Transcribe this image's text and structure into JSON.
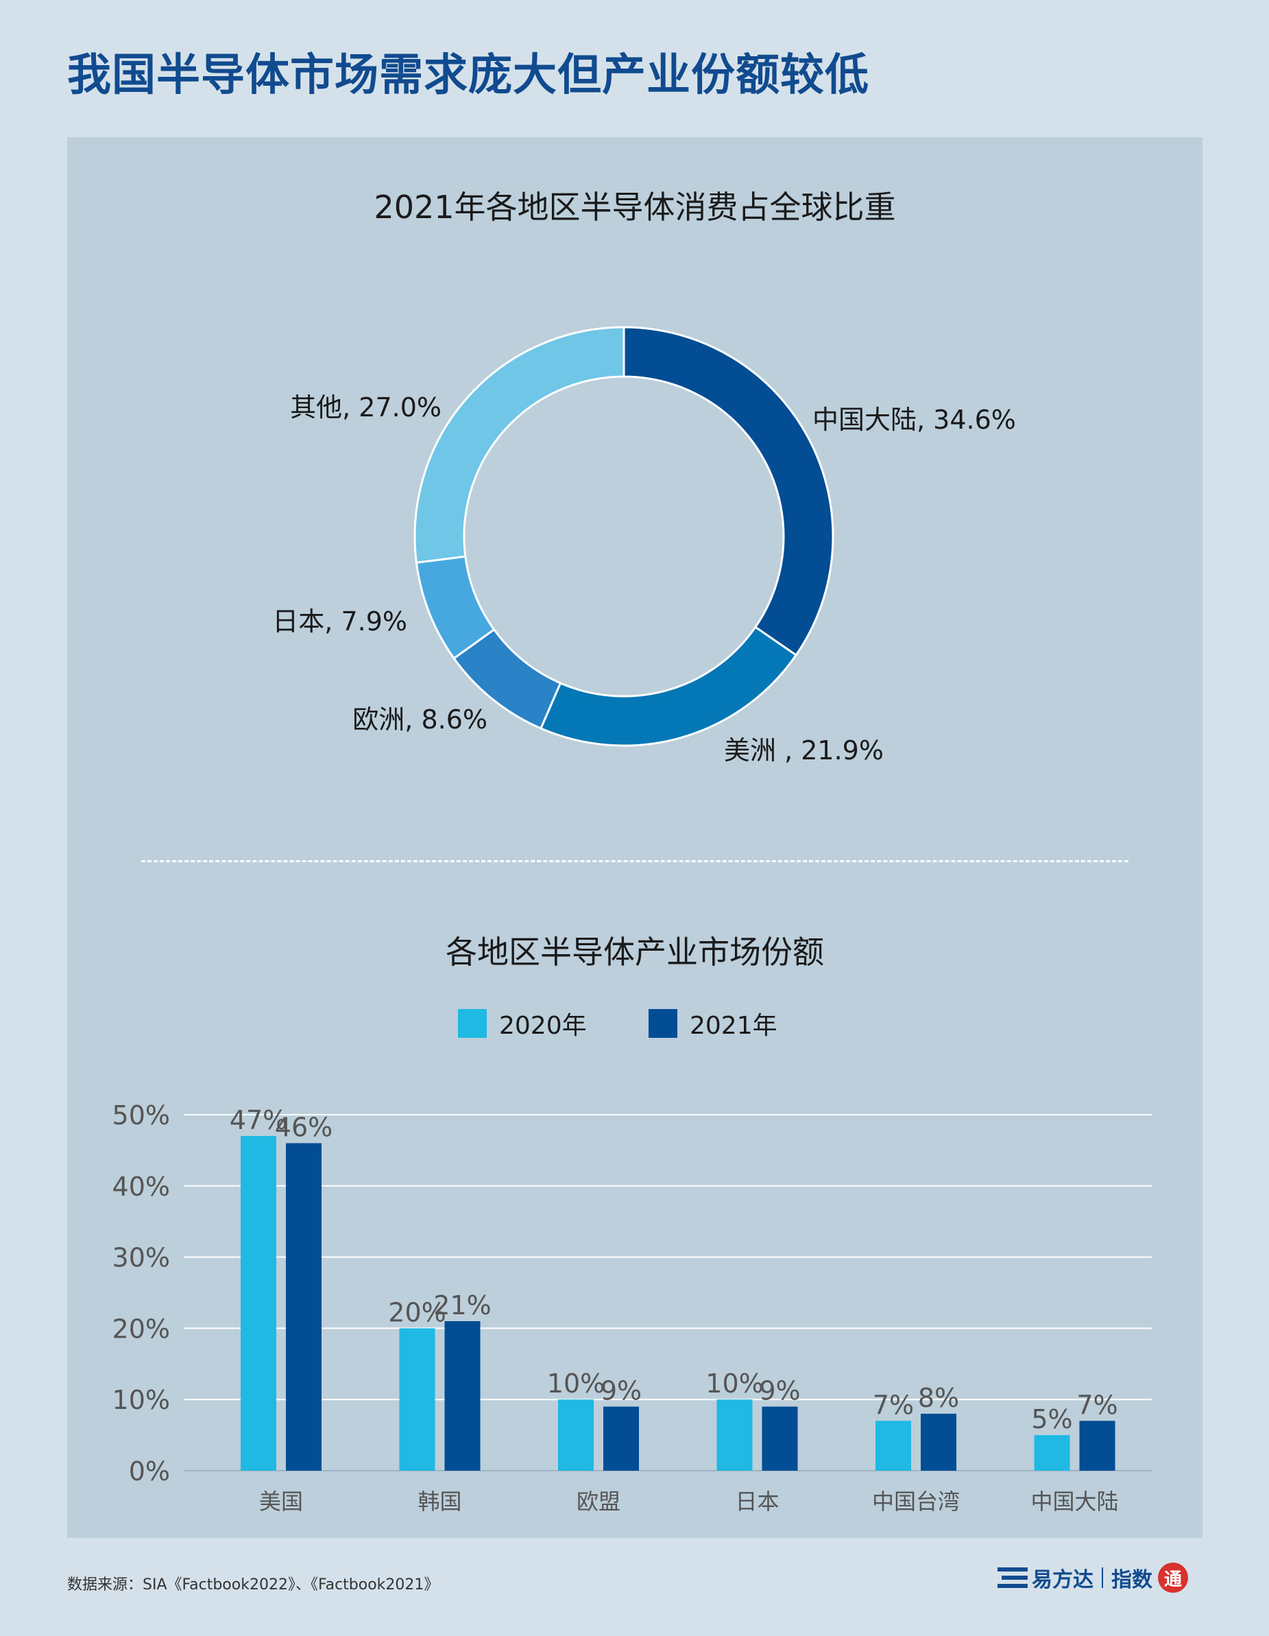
{
  "title": "我国半导体市场需求庞大但产业份额较低",
  "colors": {
    "background": "#d5e1ea",
    "panel": "#bccfdb",
    "title": "#114b8f",
    "series_2020": "#1fb9e3",
    "series_2021": "#024d94",
    "gridline": "#ffffff",
    "value_label": "#555555"
  },
  "chart_data": [
    {
      "type": "pie",
      "subtype": "donut",
      "title": "2021年各地区半导体消费占全球比重",
      "slices": [
        {
          "label": "中国大陆, 34.6%",
          "value": 34.6,
          "color": "#024d94"
        },
        {
          "label": "美洲 , 21.9%",
          "value": 21.9,
          "color": "#0478b6"
        },
        {
          "label": "欧洲, 8.6%",
          "value": 8.6,
          "color": "#2a82c7"
        },
        {
          "label": "日本, 7.9%",
          "value": 7.9,
          "color": "#47a8e0"
        },
        {
          "label": "其他, 27.0%",
          "value": 27.0,
          "color": "#6fc6e7"
        }
      ]
    },
    {
      "type": "bar",
      "title": "各地区半导体产业市场份额",
      "categories": [
        "美国",
        "韩国",
        "欧盟",
        "日本",
        "中国台湾",
        "中国大陆"
      ],
      "series": [
        {
          "name": "2020年",
          "values": [
            47,
            20,
            10,
            10,
            7,
            5
          ],
          "labels": [
            "47%",
            "20%",
            "10%",
            "10%",
            "7%",
            "5%"
          ],
          "color": "#1fb9e3"
        },
        {
          "name": "2021年",
          "values": [
            46,
            21,
            9,
            9,
            8,
            7
          ],
          "labels": [
            "46%",
            "21%",
            "9%",
            "9%",
            "8%",
            "7%"
          ],
          "color": "#024d94"
        }
      ],
      "ylim": [
        0,
        50
      ],
      "yticks": [
        0,
        10,
        20,
        30,
        40,
        50
      ],
      "ytick_labels": [
        "0%",
        "10%",
        "20%",
        "30%",
        "40%",
        "50%"
      ],
      "grid": true,
      "legend_position": "top-center"
    }
  ],
  "footer": {
    "source": "数据来源：SIA《Factbook2022》、《Factbook2021》",
    "brand": "易方达",
    "index_label": "指数",
    "seal_text": "通"
  }
}
